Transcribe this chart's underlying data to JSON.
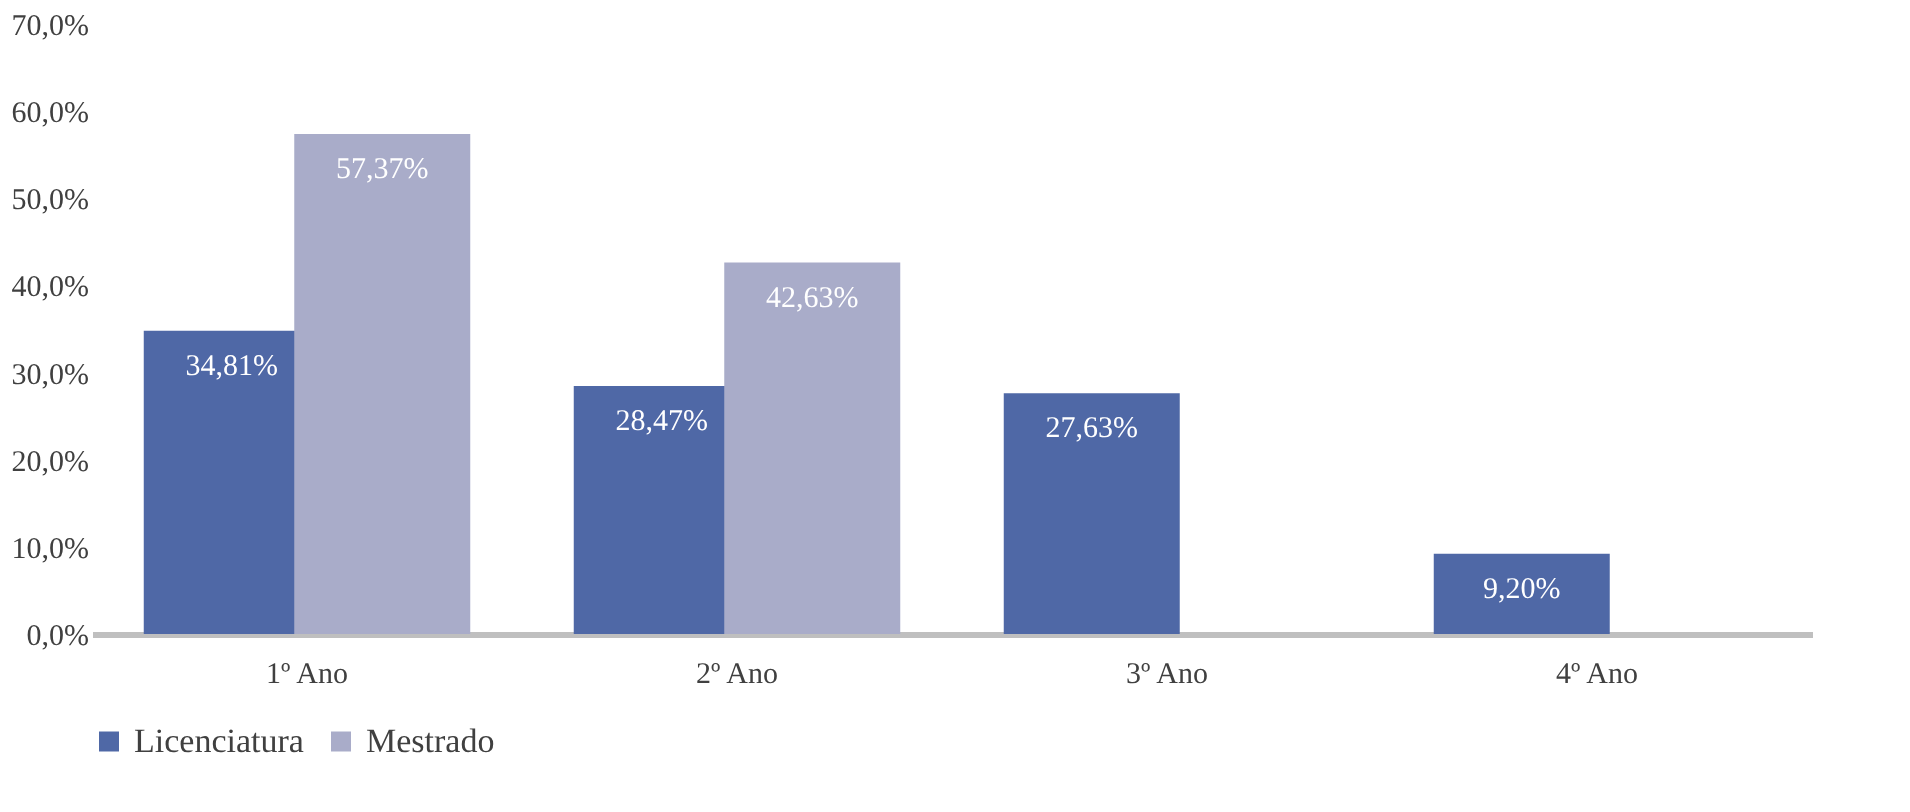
{
  "chart_data": {
    "type": "bar",
    "categories": [
      "1º Ano",
      "2º Ano",
      "3º Ano",
      "4º Ano"
    ],
    "series": [
      {
        "name": "Licenciatura",
        "color": "#4f68a6",
        "values": [
          34.81,
          28.47,
          27.63,
          9.2
        ],
        "value_labels": [
          "34,81%",
          "28,47%",
          "27,63%",
          "9,20%"
        ]
      },
      {
        "name": "Mestrado",
        "color": "#a9acc9",
        "values": [
          57.37,
          42.63,
          null,
          null
        ],
        "value_labels": [
          "57,37%",
          "42,63%",
          null,
          null
        ]
      }
    ],
    "ylim": [
      0,
      70
    ],
    "yticks": [
      {
        "value": 0,
        "label": "0,0%"
      },
      {
        "value": 10,
        "label": "10,0%"
      },
      {
        "value": 20,
        "label": "20,0%"
      },
      {
        "value": 30,
        "label": "30,0%"
      },
      {
        "value": 40,
        "label": "40,0%"
      },
      {
        "value": 50,
        "label": "50,0%"
      },
      {
        "value": 60,
        "label": "60,0%"
      },
      {
        "value": 70,
        "label": "70,0%"
      }
    ],
    "grid": false,
    "legend": "bottom"
  }
}
